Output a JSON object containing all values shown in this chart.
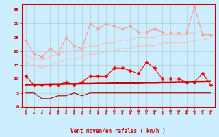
{
  "x": [
    0,
    1,
    2,
    3,
    4,
    5,
    6,
    7,
    8,
    9,
    10,
    11,
    12,
    13,
    14,
    15,
    16,
    17,
    18,
    19,
    20,
    21,
    22,
    23
  ],
  "series": [
    {
      "name": "rafales_max",
      "color": "#ff9999",
      "linewidth": 0.8,
      "marker": "*",
      "markersize": 3.5,
      "linestyle": "-",
      "values": [
        24,
        19,
        18,
        21,
        19,
        25,
        22,
        21,
        30,
        28,
        30,
        29,
        28,
        29,
        27,
        27,
        28,
        27,
        27,
        27,
        27,
        36,
        26,
        26
      ]
    },
    {
      "name": "rafales_moy_upper",
      "color": "#ffbbbb",
      "linewidth": 0.8,
      "marker": null,
      "markersize": 0,
      "linestyle": "-",
      "values": [
        19,
        17,
        17,
        18,
        19,
        20,
        20,
        21,
        22,
        22,
        23,
        23,
        24,
        24,
        25,
        25,
        25,
        26,
        26,
        26,
        26,
        27,
        27,
        27
      ]
    },
    {
      "name": "rafales_moy_lower",
      "color": "#ffbbbb",
      "linewidth": 0.8,
      "marker": null,
      "markersize": 0,
      "linestyle": "-",
      "values": [
        16,
        15,
        14,
        15,
        16,
        17,
        17,
        18,
        19,
        19,
        20,
        20,
        21,
        21,
        22,
        22,
        22,
        23,
        23,
        23,
        23,
        24,
        24,
        25
      ]
    },
    {
      "name": "vent_rafales_spot",
      "color": "#ff0000",
      "linewidth": 0.8,
      "marker": "D",
      "markersize": 2.5,
      "linestyle": "-",
      "values": [
        11,
        8,
        8,
        8,
        8,
        9,
        8,
        9,
        11,
        11,
        11,
        14,
        14,
        13,
        12,
        16,
        14,
        10,
        10,
        10,
        9,
        9,
        12,
        8
      ]
    },
    {
      "name": "vent_moy_reg",
      "color": "#cc0000",
      "linewidth": 1.8,
      "marker": null,
      "markersize": 0,
      "linestyle": "-",
      "values": [
        8.0,
        8.1,
        8.1,
        8.2,
        8.2,
        8.3,
        8.3,
        8.4,
        8.4,
        8.5,
        8.5,
        8.6,
        8.6,
        8.7,
        8.7,
        8.8,
        8.8,
        8.9,
        8.9,
        9.0,
        9.0,
        9.1,
        9.1,
        9.2
      ]
    },
    {
      "name": "vent_min",
      "color": "#aa0000",
      "linewidth": 0.8,
      "marker": null,
      "markersize": 0,
      "linestyle": "-",
      "values": [
        5,
        5,
        3,
        3,
        4,
        4,
        5,
        4,
        5,
        5,
        5,
        5,
        5,
        5,
        5,
        5,
        5,
        5,
        5,
        5,
        5,
        5,
        5,
        5
      ]
    }
  ],
  "xlabel": "Vent moyen/en rafales ( km/h )",
  "xlim": [
    -0.5,
    23.5
  ],
  "ylim": [
    0,
    37
  ],
  "yticks": [
    0,
    5,
    10,
    15,
    20,
    25,
    30,
    35
  ],
  "xticks": [
    0,
    1,
    2,
    3,
    4,
    5,
    6,
    7,
    8,
    9,
    10,
    11,
    12,
    13,
    14,
    15,
    16,
    17,
    18,
    19,
    20,
    21,
    22,
    23
  ],
  "background_color": "#cceeff",
  "grid_color": "#aacccc",
  "tick_color": "#cc0000",
  "label_color": "#cc0000",
  "arrow_color": "#cc0000"
}
